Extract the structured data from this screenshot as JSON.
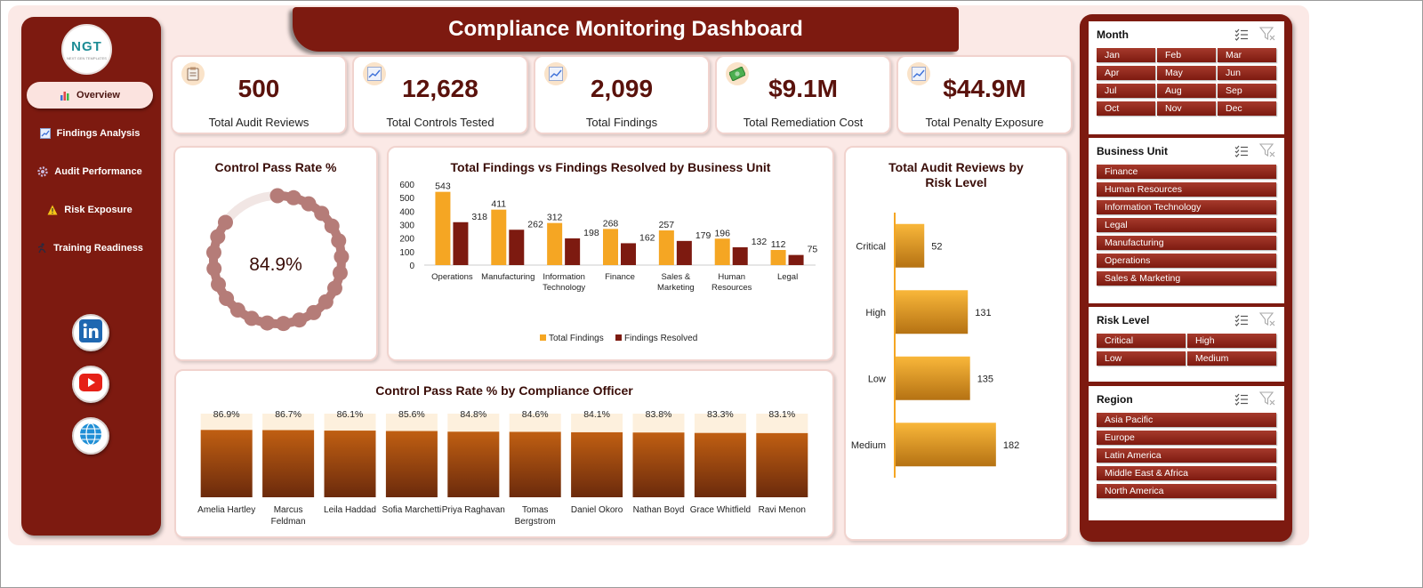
{
  "title": "Compliance Monitoring Dashboard",
  "logo": {
    "text": "NGT",
    "tagline": "NEXT GEN TEMPLATES"
  },
  "nav": [
    {
      "label": "Overview",
      "icon": "bar-chart-icon",
      "active": true
    },
    {
      "label": "Findings Analysis",
      "icon": "line-chart-icon",
      "active": false
    },
    {
      "label": "Audit Performance",
      "icon": "gear-icon",
      "active": false
    },
    {
      "label": "Risk Exposure",
      "icon": "warning-icon",
      "active": false
    },
    {
      "label": "Training Readiness",
      "icon": "person-run-icon",
      "active": false
    }
  ],
  "social": [
    "linkedin-icon",
    "youtube-icon",
    "globe-icon"
  ],
  "kpis": [
    {
      "value": "500",
      "label": "Total Audit Reviews",
      "icon": "clipboard-icon"
    },
    {
      "value": "12,628",
      "label": "Total Controls Tested",
      "icon": "line-chart-icon"
    },
    {
      "value": "2,099",
      "label": "Total Findings",
      "icon": "line-chart-icon"
    },
    {
      "value": "$9.1M",
      "label": "Total Remediation Cost",
      "icon": "money-icon"
    },
    {
      "value": "$44.9M",
      "label": "Total Penalty Exposure",
      "icon": "line-chart-icon"
    }
  ],
  "gauge": {
    "title": "Control Pass Rate %",
    "value_text": "84.9%",
    "value": 84.9
  },
  "chart_data": [
    {
      "type": "bar",
      "title": "Total Findings vs Findings Resolved by Business Unit",
      "categories": [
        "Operations",
        "Manufacturing",
        "Information Technology",
        "Finance",
        "Sales & Marketing",
        "Human Resources",
        "Legal"
      ],
      "category_lines": [
        [
          "Operations"
        ],
        [
          "Manufacturing"
        ],
        [
          "Information",
          "Technology"
        ],
        [
          "Finance"
        ],
        [
          "Sales &",
          "Marketing"
        ],
        [
          "Human",
          "Resources"
        ],
        [
          "Legal"
        ]
      ],
      "series": [
        {
          "name": "Total Findings",
          "values": [
            543,
            411,
            312,
            268,
            257,
            196,
            112
          ],
          "color": "#f5a623"
        },
        {
          "name": "Findings Resolved",
          "values": [
            318,
            262,
            198,
            162,
            179,
            132,
            75
          ],
          "color": "#7d1a10"
        }
      ],
      "ylim": [
        0,
        600
      ],
      "yticks": [
        0,
        100,
        200,
        300,
        400,
        500,
        600
      ],
      "legend": "bottom"
    },
    {
      "type": "bar",
      "orientation": "horizontal",
      "title_lines": [
        "Total Audit Reviews by",
        "Risk Level"
      ],
      "categories": [
        "Critical",
        "High",
        "Low",
        "Medium"
      ],
      "values": [
        52,
        131,
        135,
        182
      ],
      "xlim": [
        0,
        200
      ]
    },
    {
      "type": "bar",
      "title": "Control Pass Rate % by Compliance Officer",
      "categories": [
        "Amelia Hartley",
        "Marcus Feldman",
        "Leila Haddad",
        "Sofia Marchetti",
        "Priya Raghavan",
        "Tomas Bergstrom",
        "Daniel Okoro",
        "Nathan Boyd",
        "Grace Whitfield",
        "Ravi Menon"
      ],
      "category_lines": [
        [
          "Amelia Hartley"
        ],
        [
          "Marcus",
          "Feldman"
        ],
        [
          "Leila Haddad"
        ],
        [
          "Sofia Marchetti"
        ],
        [
          "Priya Raghavan"
        ],
        [
          "Tomas",
          "Bergstrom"
        ],
        [
          "Daniel Okoro"
        ],
        [
          "Nathan Boyd"
        ],
        [
          "Grace Whitfield"
        ],
        [
          "Ravi Menon"
        ]
      ],
      "values": [
        86.9,
        86.7,
        86.1,
        85.6,
        84.8,
        84.6,
        84.1,
        83.8,
        83.3,
        83.1
      ],
      "value_labels": [
        "86.9%",
        "86.7%",
        "86.1%",
        "85.6%",
        "84.8%",
        "84.6%",
        "84.1%",
        "83.8%",
        "83.3%",
        "83.1%"
      ]
    }
  ],
  "slicers": [
    {
      "title": "Month",
      "columns": 3,
      "items": [
        "Jan",
        "Feb",
        "Mar",
        "Apr",
        "May",
        "Jun",
        "Jul",
        "Aug",
        "Sep",
        "Oct",
        "Nov",
        "Dec"
      ]
    },
    {
      "title": "Business Unit",
      "columns": 1,
      "items": [
        "Finance",
        "Human Resources",
        "Information Technology",
        "Legal",
        "Manufacturing",
        "Operations",
        "Sales & Marketing"
      ]
    },
    {
      "title": "Risk Level",
      "columns": 2,
      "items": [
        "Critical",
        "High",
        "Low",
        "Medium"
      ]
    },
    {
      "title": "Region",
      "columns": 1,
      "items": [
        "Asia Pacific",
        "Europe",
        "Latin America",
        "Middle East & Africa",
        "North America"
      ]
    }
  ]
}
